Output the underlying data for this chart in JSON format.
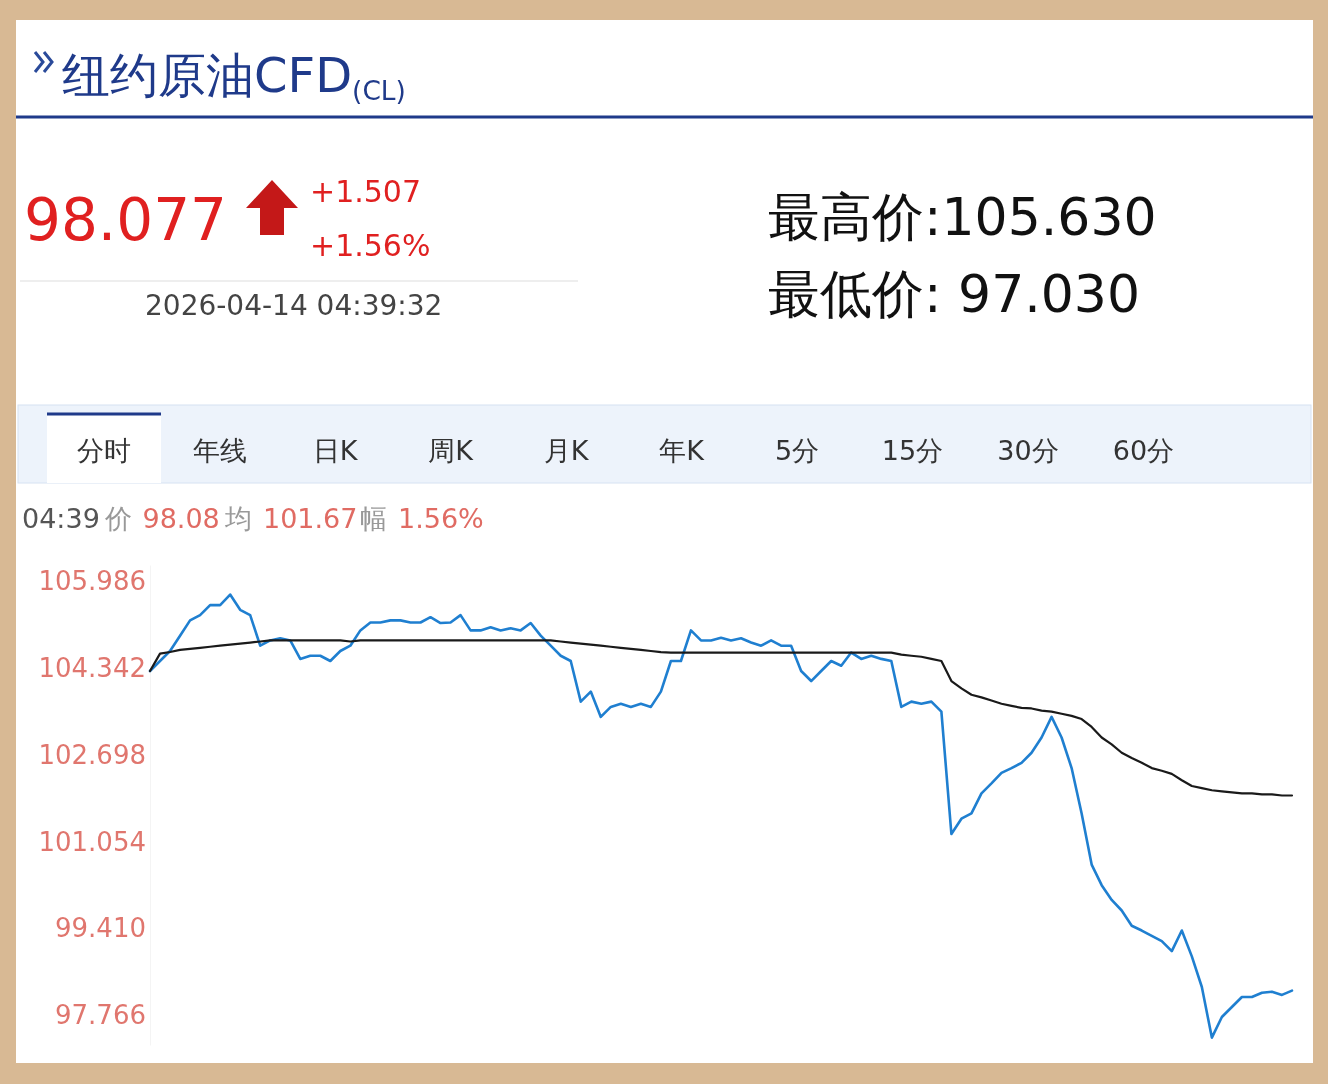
{
  "chart_data": {
    "type": "line",
    "title": "纽约原油CFD$_{(CL)}$",
    "annotations": [
      "98.077",
      "+1.507",
      "+1.56%",
      "2026-04-14 04:39:32",
      "最高价:105.630",
      "最低价: 97.030",
      "分时",
      "年线",
      "日K",
      "周K",
      "月K",
      "年K",
      "5分",
      "15分",
      "30分",
      "60分",
      "04:39",
      "价",
      "98.08",
      "均",
      "101.67",
      "幅",
      "1.56%"
    ],
    "categories": [
      null,
      null,
      null,
      null,
      null,
      null,
      null,
      null,
      null,
      null,
      null,
      null,
      null,
      null,
      null,
      null,
      null,
      null,
      null,
      null,
      null,
      null,
      null,
      null,
      null,
      null,
      null,
      null,
      null,
      null,
      null,
      null,
      null,
      null,
      null,
      null,
      null,
      null,
      null,
      null,
      null,
      null,
      null,
      null,
      null,
      null,
      null,
      null,
      null,
      null,
      null,
      null,
      null,
      null,
      null,
      null,
      null,
      null,
      null,
      null,
      null,
      null,
      null,
      null,
      null,
      null,
      null,
      null,
      null,
      null,
      null,
      null,
      null,
      null,
      null,
      null,
      null,
      null,
      null,
      null,
      null,
      null,
      null,
      null,
      null,
      null,
      null,
      null,
      null,
      null,
      null,
      null,
      null,
      null,
      null,
      null,
      null,
      null,
      null,
      null,
      null,
      null,
      null,
      null,
      null,
      null,
      null,
      null,
      null,
      null,
      null,
      null,
      null,
      null,
      null
    ],
    "tick_labels": "y",
    "ylim": [
      97.2,
      106.3
    ],
    "yticks": [
      105.986,
      104.342,
      102.698,
      101.054,
      {
        "value": 99.41,
        "label": "99.410"
      },
      97.766
    ],
    "series": [
      {
        "color": "#1f7fd0",
        "values": [
          104.29,
          104.48,
          104.67,
          104.96,
          105.25,
          105.35,
          105.54,
          105.54,
          105.74,
          105.45,
          105.35,
          104.77,
          104.87,
          104.91,
          104.87,
          104.52,
          104.58,
          104.58,
          104.48,
          104.67,
          104.77,
          105.06,
          105.21,
          105.21,
          105.25,
          105.25,
          105.21,
          105.21,
          105.31,
          105.2,
          105.21,
          105.35,
          105.06,
          105.06,
          105.12,
          105.06,
          105.1,
          105.06,
          105.2,
          104.96,
          104.77,
          104.58,
          104.48,
          103.71,
          103.9,
          103.42,
          103.61,
          103.67,
          103.61,
          103.67,
          103.61,
          103.9,
          104.48,
          104.48,
          105.06,
          104.87,
          104.87,
          104.92,
          104.87,
          104.91,
          104.83,
          104.77,
          104.87,
          104.77,
          104.77,
          104.29,
          104.1,
          104.29,
          104.48,
          104.39,
          104.64,
          104.52,
          104.58,
          104.52,
          104.48,
          103.61,
          103.71,
          103.67,
          103.71,
          103.52,
          101.2,
          101.49,
          101.59,
          101.97,
          102.16,
          102.36,
          102.45,
          102.55,
          102.74,
          103.03,
          103.42,
          103.03,
          102.45,
          101.59,
          100.62,
          100.23,
          99.95,
          99.75,
          99.46,
          99.37,
          99.27,
          99.17,
          98.98,
          99.37,
          98.88,
          98.3,
          97.34,
          97.73,
          97.92,
          98.11,
          98.11,
          98.19,
          98.21,
          98.15,
          98.23
        ]
      },
      {
        "color": "#1a1a1a",
        "values": [
          104.29,
          104.62,
          104.65,
          104.69,
          104.71,
          104.73,
          104.75,
          104.77,
          104.79,
          104.81,
          104.83,
          104.85,
          104.87,
          104.87,
          104.87,
          104.87,
          104.87,
          104.87,
          104.87,
          104.87,
          104.85,
          104.87,
          104.87,
          104.87,
          104.87,
          104.87,
          104.87,
          104.87,
          104.87,
          104.87,
          104.87,
          104.87,
          104.87,
          104.87,
          104.87,
          104.87,
          104.87,
          104.87,
          104.87,
          104.87,
          104.87,
          104.85,
          104.83,
          104.81,
          104.79,
          104.77,
          104.75,
          104.73,
          104.71,
          104.69,
          104.67,
          104.65,
          104.64,
          104.64,
          104.64,
          104.64,
          104.64,
          104.64,
          104.64,
          104.64,
          104.64,
          104.64,
          104.64,
          104.64,
          104.64,
          104.64,
          104.64,
          104.64,
          104.64,
          104.64,
          104.64,
          104.64,
          104.64,
          104.64,
          104.64,
          104.6,
          104.58,
          104.56,
          104.52,
          104.48,
          104.1,
          103.96,
          103.84,
          103.79,
          103.73,
          103.67,
          103.63,
          103.59,
          103.58,
          103.54,
          103.52,
          103.48,
          103.44,
          103.38,
          103.23,
          103.03,
          102.9,
          102.74,
          102.64,
          102.55,
          102.45,
          102.4,
          102.34,
          102.22,
          102.11,
          102.07,
          102.03,
          102.01,
          101.99,
          101.97,
          101.97,
          101.95,
          101.95,
          101.93,
          101.93
        ]
      }
    ]
  }
}
